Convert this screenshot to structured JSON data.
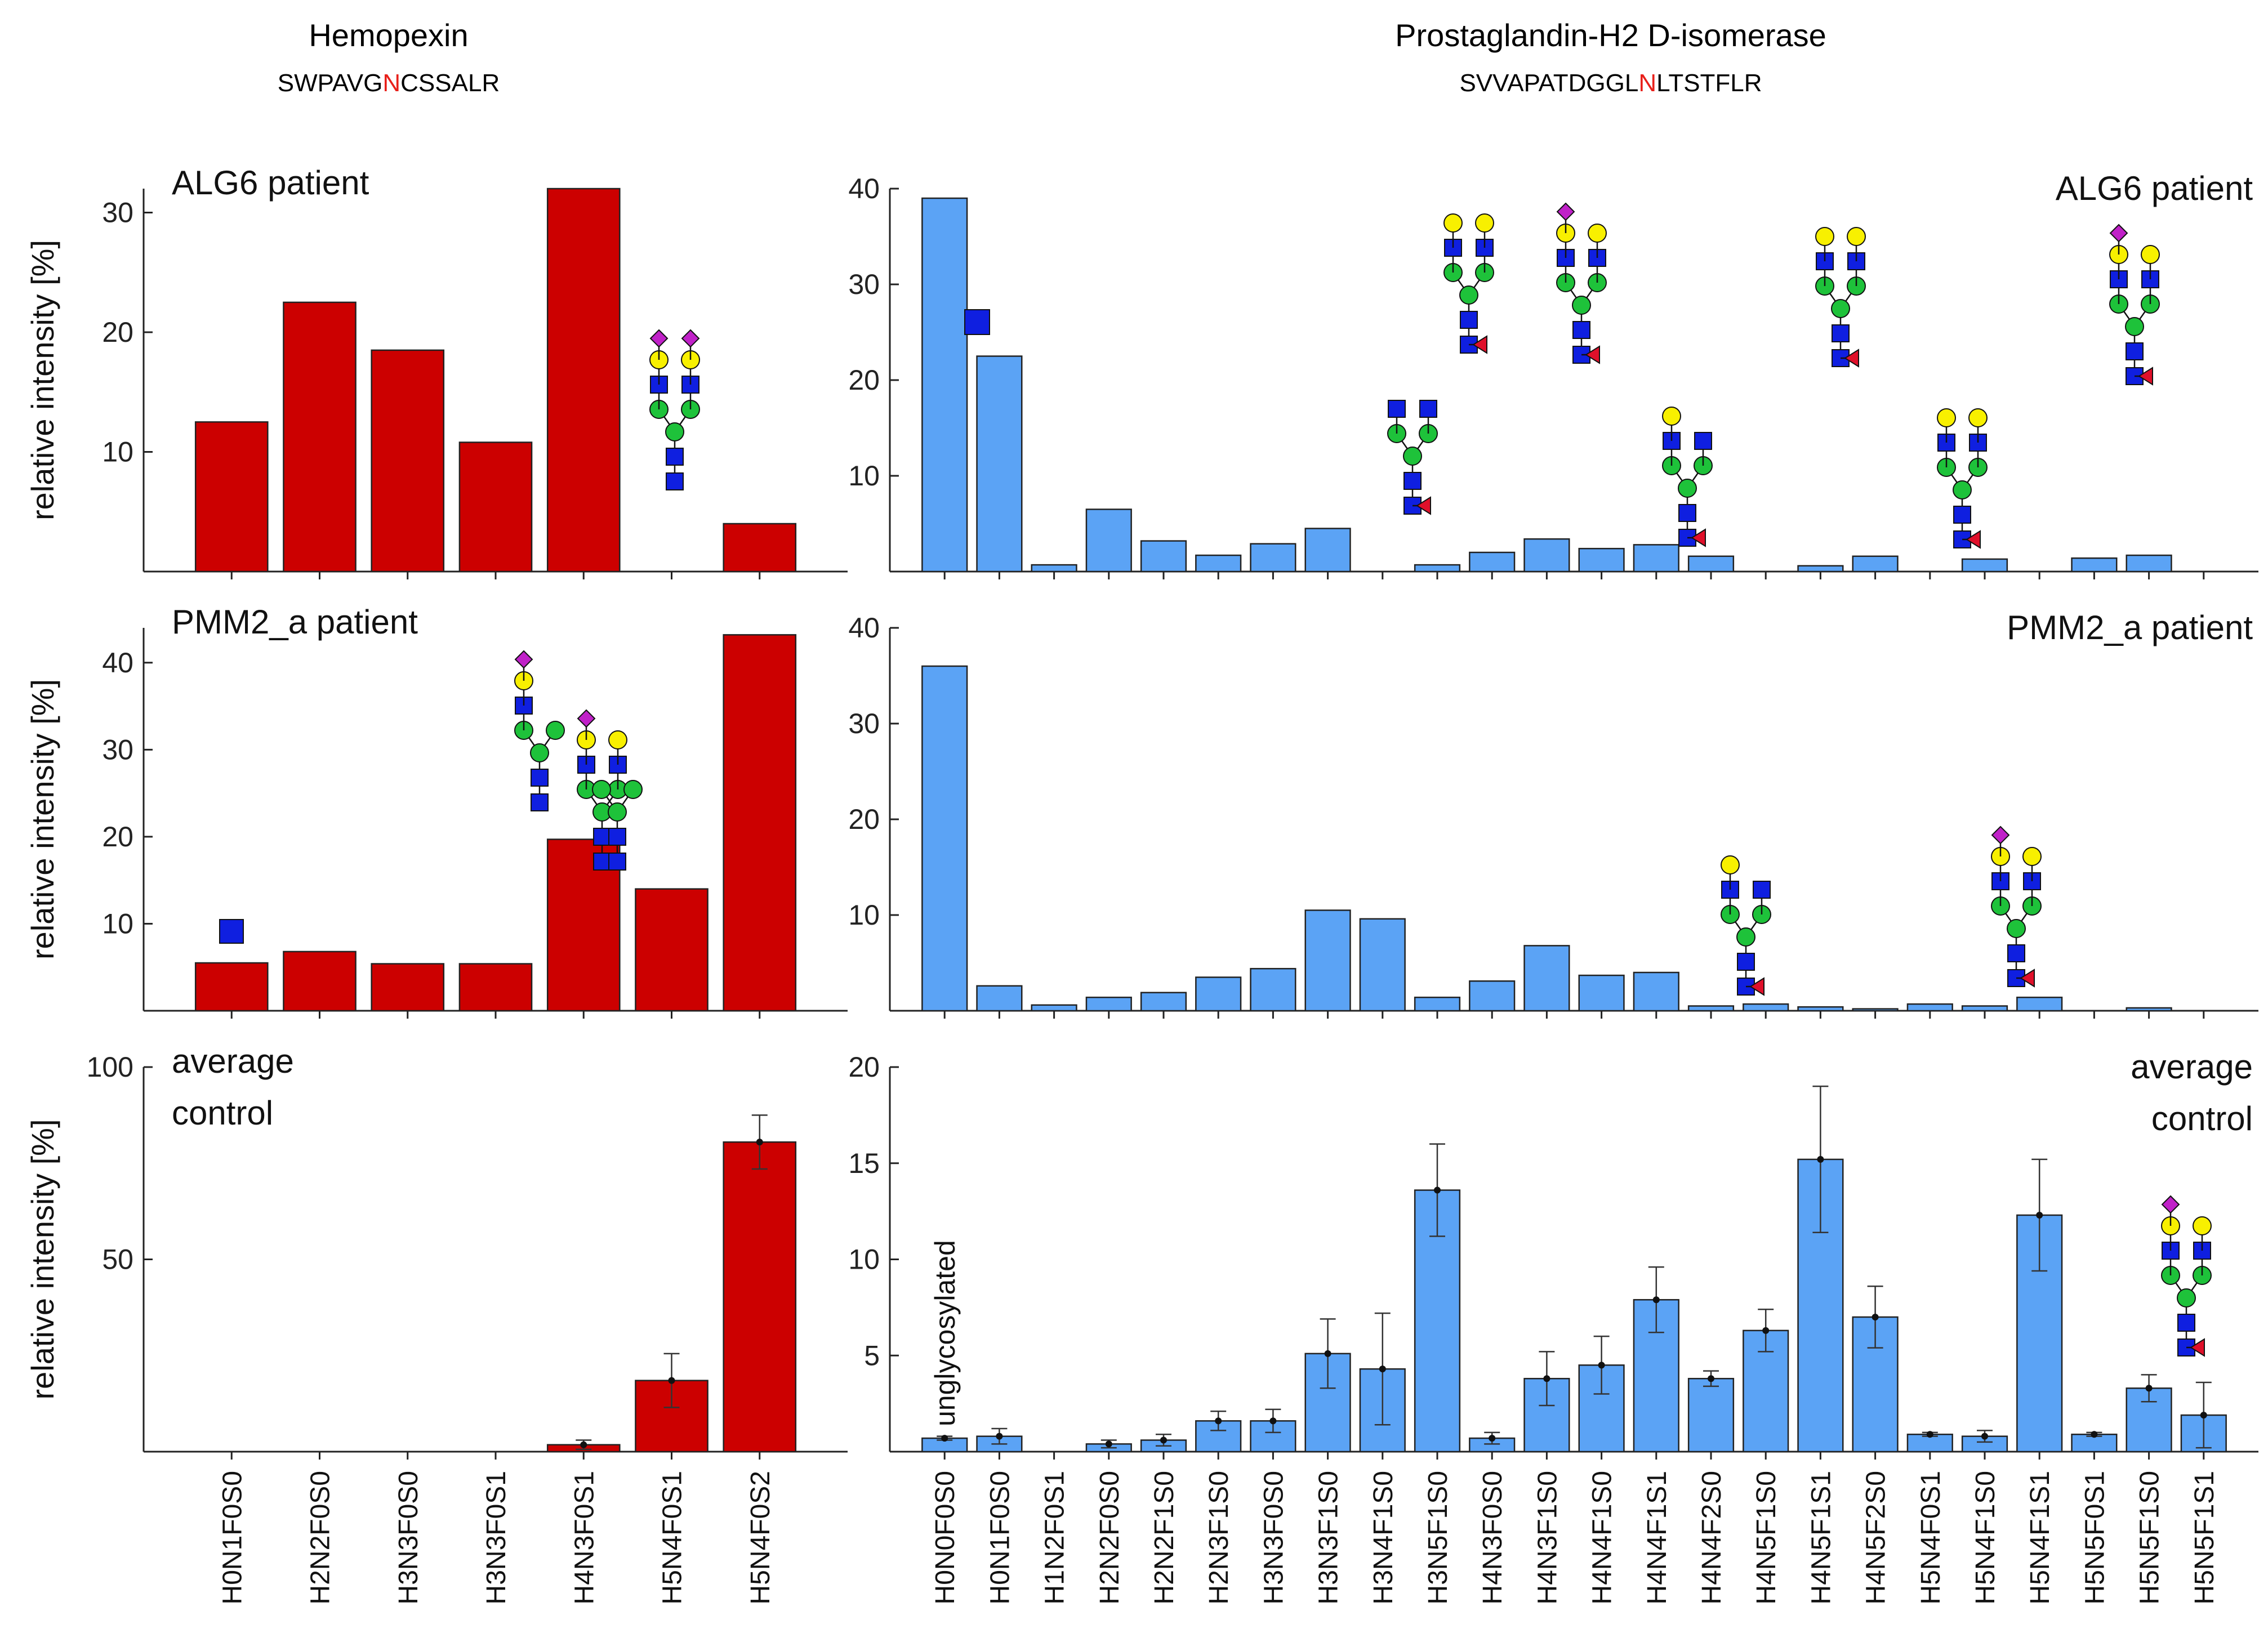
{
  "colors": {
    "red_bar": "#cc0000",
    "blue_bar": "#5ba3f5",
    "bar_edge": "#222222",
    "highlight": "#e8201a",
    "glycan_blue": "#0f1fe0",
    "glycan_green": "#1ec23a",
    "glycan_yellow": "#f8f000",
    "glycan_purple": "#c021c8",
    "glycan_red": "#e0102a"
  },
  "header": {
    "left_title": "Hemopexin",
    "left_seq_pre": "SWPAVG",
    "left_seq_hl": "N",
    "left_seq_post": "CSSALR",
    "right_title": "Prostaglandin-H2 D-isomerase",
    "right_seq_pre": "SVVAPATDGGL",
    "right_seq_hl": "N",
    "right_seq_post": "LTSTFLR"
  },
  "ylabel": "relative intensity [%]",
  "unglycosylated_label": "unglycosylated",
  "chart_data": [
    {
      "type": "bar",
      "protein": "Hemopexin",
      "panel": "ALG6 patient",
      "label": "ALG6 patient",
      "categories": [
        "H0N1F0S0",
        "H2N2F0S0",
        "H3N3F0S0",
        "H3N3F0S1",
        "H4N3F0S1",
        "H5N4F0S1",
        "H5N4F0S2"
      ],
      "values": [
        12.5,
        22.5,
        18.5,
        10.8,
        32.0,
        0,
        4.0
      ],
      "ylim": [
        0,
        32
      ],
      "yticks": [
        10,
        20,
        30
      ]
    },
    {
      "type": "bar",
      "protein": "Hemopexin",
      "panel": "PMM2_a patient",
      "label": "PMM2_a patient",
      "categories": [
        "H0N1F0S0",
        "H2N2F0S0",
        "H3N3F0S0",
        "H3N3F0S1",
        "H4N3F0S1",
        "H5N4F0S1",
        "H5N4F0S2"
      ],
      "values": [
        5.5,
        6.8,
        5.4,
        5.4,
        19.7,
        14.0,
        43.2
      ],
      "ylim": [
        0,
        44
      ],
      "yticks": [
        10,
        20,
        30,
        40
      ]
    },
    {
      "type": "bar",
      "protein": "Hemopexin",
      "panel": "average control",
      "label": [
        "average",
        "control"
      ],
      "categories": [
        "H0N1F0S0",
        "H2N2F0S0",
        "H3N3F0S0",
        "H3N3F0S1",
        "H4N3F0S1",
        "H5N4F0S1",
        "H5N4F0S2"
      ],
      "values": [
        0,
        0,
        0,
        0,
        1.8,
        18.5,
        80.5
      ],
      "errors": [
        0,
        0,
        0,
        0,
        1.2,
        7.0,
        7.0
      ],
      "ylim": [
        0,
        100
      ],
      "yticks": [
        50,
        100
      ]
    },
    {
      "type": "bar",
      "protein": "Prostaglandin-H2 D-isomerase",
      "panel": "ALG6 patient",
      "label": "ALG6 patient",
      "categories": [
        "H0N0F0S0",
        "H0N1F0S0",
        "H1N2F0S1",
        "H2N2F0S0",
        "H2N2F1S0",
        "H2N3F1S0",
        "H3N3F0S0",
        "H3N3F1S0",
        "H3N4F1S0",
        "H3N5F1S0",
        "H4N3F0S0",
        "H4N3F1S0",
        "H4N4F1S0",
        "H4N4F1S1",
        "H4N4F2S0",
        "H4N5F1S0",
        "H4N5F1S1",
        "H4N5F2S0",
        "H5N4F0S1",
        "H5N4F1S0",
        "H5N4F1S1",
        "H5N5F0S1",
        "H5N5F1S0",
        "H5N5F1S1"
      ],
      "values": [
        39.0,
        22.5,
        0.7,
        6.5,
        3.2,
        1.7,
        2.9,
        4.5,
        0,
        0.7,
        2.0,
        3.4,
        2.4,
        2.8,
        1.6,
        0,
        0.6,
        1.6,
        0,
        1.3,
        0,
        1.4,
        1.7,
        0
      ],
      "ylim": [
        0,
        40
      ],
      "yticks": [
        10,
        20,
        30,
        40
      ]
    },
    {
      "type": "bar",
      "protein": "Prostaglandin-H2 D-isomerase",
      "panel": "PMM2_a patient",
      "label": "PMM2_a patient",
      "categories": [
        "H0N0F0S0",
        "H0N1F0S0",
        "H1N2F0S1",
        "H2N2F0S0",
        "H2N2F1S0",
        "H2N3F1S0",
        "H3N3F0S0",
        "H3N3F1S0",
        "H3N4F1S0",
        "H3N5F1S0",
        "H4N3F0S0",
        "H4N3F1S0",
        "H4N4F1S0",
        "H4N4F1S1",
        "H4N4F2S0",
        "H4N5F1S0",
        "H4N5F1S1",
        "H4N5F2S0",
        "H5N4F0S1",
        "H5N4F1S0",
        "H5N4F1S1",
        "H5N5F0S1",
        "H5N5F1S0",
        "H5N5F1S1"
      ],
      "values": [
        36.0,
        2.6,
        0.6,
        1.4,
        1.9,
        3.5,
        4.4,
        10.5,
        9.6,
        1.4,
        3.1,
        6.8,
        3.7,
        4.0,
        0.5,
        0.7,
        0.4,
        0.2,
        0.7,
        0.5,
        1.4,
        0,
        0.3,
        0
      ],
      "ylim": [
        0,
        40
      ],
      "yticks": [
        10,
        20,
        30,
        40
      ]
    },
    {
      "type": "bar",
      "protein": "Prostaglandin-H2 D-isomerase",
      "panel": "average control",
      "label": [
        "average",
        "control"
      ],
      "categories": [
        "H0N0F0S0",
        "H0N1F0S0",
        "H1N2F0S1",
        "H2N2F0S0",
        "H2N2F1S0",
        "H2N3F1S0",
        "H3N3F0S0",
        "H3N3F1S0",
        "H3N4F1S0",
        "H3N5F1S0",
        "H4N3F0S0",
        "H4N3F1S0",
        "H4N4F1S0",
        "H4N4F1S1",
        "H4N4F2S0",
        "H4N5F1S0",
        "H4N5F1S1",
        "H4N5F2S0",
        "H5N4F0S1",
        "H5N4F1S0",
        "H5N4F1S1",
        "H5N5F0S1",
        "H5N5F1S0",
        "H5N5F1S1"
      ],
      "values": [
        0.7,
        0.8,
        0,
        0.4,
        0.6,
        1.6,
        1.6,
        5.1,
        4.3,
        13.6,
        0.7,
        3.8,
        4.5,
        7.9,
        3.8,
        6.3,
        15.2,
        7.0,
        0.9,
        0.8,
        12.3,
        0.9,
        3.3,
        1.9
      ],
      "errors": [
        0.1,
        0.4,
        0,
        0.2,
        0.3,
        0.5,
        0.6,
        1.8,
        2.9,
        2.4,
        0.3,
        1.4,
        1.5,
        1.7,
        0.4,
        1.1,
        3.8,
        1.6,
        0.1,
        0.3,
        2.9,
        0.1,
        0.7,
        1.7
      ],
      "ylim": [
        0,
        20
      ],
      "yticks": [
        5,
        10,
        15,
        20
      ]
    }
  ]
}
